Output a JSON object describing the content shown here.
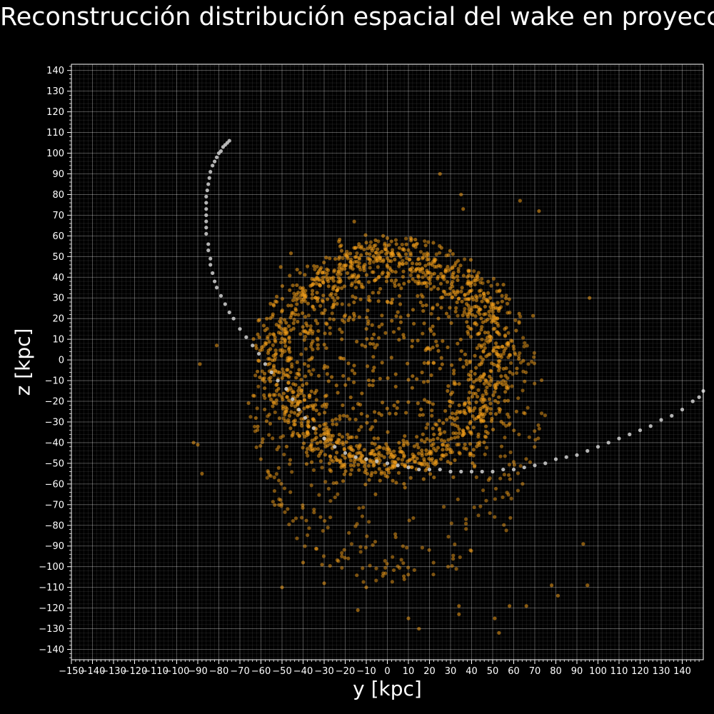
{
  "chart_data": {
    "type": "scatter",
    "title": "Reconstrucción distribución espacial del wake en proyección",
    "xlabel": "y [kpc]",
    "ylabel": "z [kpc]",
    "xlim": [
      -150,
      150
    ],
    "ylim": [
      -145,
      143
    ],
    "xticks": [
      -150,
      -140,
      -130,
      -120,
      -110,
      -100,
      -90,
      -80,
      -70,
      -60,
      -50,
      -40,
      -30,
      -20,
      -10,
      0,
      10,
      20,
      30,
      40,
      50,
      60,
      70,
      80,
      90,
      100,
      110,
      120,
      130,
      140
    ],
    "yticks": [
      -140,
      -130,
      -120,
      -110,
      -100,
      -90,
      -80,
      -70,
      -60,
      -50,
      -40,
      -30,
      -20,
      -10,
      0,
      10,
      20,
      30,
      40,
      50,
      60,
      70,
      80,
      90,
      100,
      110,
      120,
      130,
      140
    ],
    "grid": true,
    "minor_grid": true,
    "background": "#000000",
    "series": [
      {
        "color": "#f5a01a",
        "alpha": 0.55,
        "marker": "circle",
        "structure": {
          "ring": {
            "center": [
              0,
              0
            ],
            "radius_y": 52,
            "radius_z": 50,
            "count": 1250,
            "spread": 6
          },
          "interior": {
            "center": [
              2,
              -5
            ],
            "radius": 48,
            "count": 380
          },
          "halo": {
            "center": [
              5,
              -25
            ],
            "radius_y": 70,
            "radius_z": 85,
            "count": 420
          }
        },
        "points": [
          [
            25,
            90
          ],
          [
            35,
            80
          ],
          [
            36,
            73
          ],
          [
            63,
            77
          ],
          [
            72,
            72
          ],
          [
            -2,
            60
          ],
          [
            96,
            30
          ],
          [
            95,
            -109
          ],
          [
            93,
            -89
          ],
          [
            -89,
            -2
          ],
          [
            -81,
            7
          ],
          [
            -92,
            -40
          ],
          [
            -90,
            -41
          ],
          [
            -88,
            -55
          ],
          [
            -50,
            -110
          ],
          [
            15,
            -130
          ],
          [
            53,
            -132
          ],
          [
            81,
            -114
          ],
          [
            78,
            -109
          ],
          [
            66,
            -119
          ],
          [
            58,
            -119
          ],
          [
            51,
            -125
          ],
          [
            34,
            -123
          ],
          [
            34,
            -119
          ],
          [
            10,
            -125
          ],
          [
            -14,
            -121
          ],
          [
            -10,
            -110
          ],
          [
            -31,
            -99
          ],
          [
            -40,
            -98
          ],
          [
            -30,
            -108
          ]
        ]
      },
      {
        "color": "#c8c8c8",
        "alpha": 0.9,
        "marker": "circle",
        "points": [
          [
            -75,
            106
          ],
          [
            -76,
            105
          ],
          [
            -77,
            104
          ],
          [
            -78,
            103
          ],
          [
            -79,
            101
          ],
          [
            -80,
            100
          ],
          [
            -81,
            98
          ],
          [
            -82,
            96
          ],
          [
            -83,
            94
          ],
          [
            -84,
            91
          ],
          [
            -84.5,
            88
          ],
          [
            -85,
            85
          ],
          [
            -85.5,
            82
          ],
          [
            -86,
            79
          ],
          [
            -86,
            76
          ],
          [
            -86,
            73
          ],
          [
            -86,
            70
          ],
          [
            -86,
            67
          ],
          [
            -86,
            64
          ],
          [
            -86,
            61
          ],
          [
            -85,
            56
          ],
          [
            -85,
            53
          ],
          [
            -84,
            49
          ],
          [
            -84,
            46
          ],
          [
            -83,
            42
          ],
          [
            -82,
            38
          ],
          [
            -81,
            35
          ],
          [
            -79,
            31
          ],
          [
            -77,
            27
          ],
          [
            -75,
            23
          ],
          [
            -73,
            20
          ],
          [
            -70,
            15
          ],
          [
            -67,
            11
          ],
          [
            -64,
            7
          ],
          [
            -61,
            3
          ],
          [
            -58,
            -2
          ],
          [
            -55,
            -6
          ],
          [
            -52,
            -10
          ],
          [
            -48,
            -14
          ],
          [
            -45,
            -19
          ],
          [
            -42,
            -24
          ],
          [
            -39,
            -28
          ],
          [
            -35,
            -33
          ],
          [
            -30,
            -38
          ],
          [
            -25,
            -42
          ],
          [
            -20,
            -45
          ],
          [
            -15,
            -47
          ],
          [
            -10,
            -48
          ],
          [
            -5,
            -49
          ],
          [
            0,
            -50
          ],
          [
            5,
            -51
          ],
          [
            10,
            -52
          ],
          [
            15,
            -53
          ],
          [
            20,
            -53
          ],
          [
            25,
            -53
          ],
          [
            30,
            -54
          ],
          [
            35,
            -54
          ],
          [
            40,
            -54
          ],
          [
            45,
            -54
          ],
          [
            50,
            -54
          ],
          [
            55,
            -53
          ],
          [
            60,
            -53
          ],
          [
            65,
            -52
          ],
          [
            70,
            -51
          ],
          [
            75,
            -50
          ],
          [
            80,
            -48
          ],
          [
            85,
            -47
          ],
          [
            90,
            -46
          ],
          [
            95,
            -44
          ],
          [
            100,
            -42
          ],
          [
            105,
            -40
          ],
          [
            110,
            -38
          ],
          [
            115,
            -36
          ],
          [
            120,
            -34
          ],
          [
            125,
            -32
          ],
          [
            130,
            -29
          ],
          [
            135,
            -27
          ],
          [
            140,
            -24
          ],
          [
            145,
            -20
          ],
          [
            148,
            -18
          ],
          [
            150,
            -15
          ]
        ]
      }
    ]
  }
}
